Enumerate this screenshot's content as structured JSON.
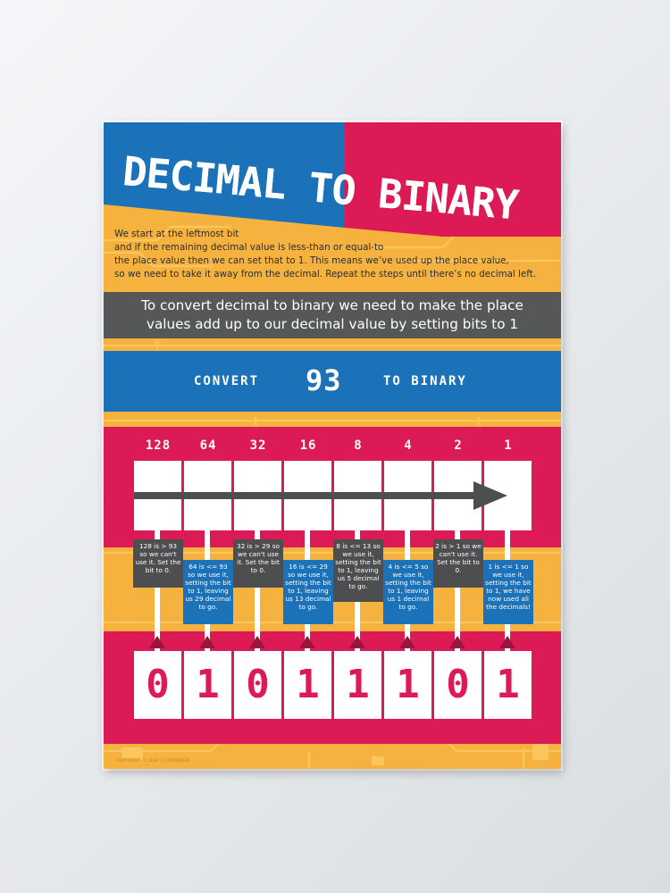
{
  "title": "DECIMAL TO BINARY",
  "intro_lines": [
    "We start at the leftmost bit",
    "and if the remaining decimal value is less-than or equal-to",
    "the place value then we can set that to 1. This means we’ve used up the place value,",
    "so we need to take it away from the decimal. Repeat the steps until there’s no decimal left."
  ],
  "summary_lines": [
    "To convert decimal to binary we need to make the place",
    "values add up to our decimal value by setting bits to 1"
  ],
  "convert": {
    "prefix": "CONVERT",
    "number": "93",
    "suffix": "TO BINARY"
  },
  "place_values": [
    "128",
    "64",
    "32",
    "16",
    "8",
    "4",
    "2",
    "1"
  ],
  "bits": [
    "0",
    "1",
    "0",
    "1",
    "1",
    "1",
    "0",
    "1"
  ],
  "notes": [
    {
      "text": "128 is > 93 so we can't use it. Set the bit to 0.",
      "style": "grey"
    },
    {
      "text": "64 is <= 93 so we use it, setting the bit to 1, leaving us 29 decimal to go.",
      "style": "blue"
    },
    {
      "text": "32 is > 29 so we can't use it. Set the bit to 0.",
      "style": "grey"
    },
    {
      "text": "16 is <= 29 so we use it, setting the bit to 1, leaving us 13 decimal to go.",
      "style": "blue"
    },
    {
      "text": "8 is <= 13 so we use it, setting the bit to 1, leaving us 5 decimal to go.",
      "style": "grey"
    },
    {
      "text": "4 is <= 5 so we use it, setting the bit to 1, leaving us 1 decimal to go.",
      "style": "blue"
    },
    {
      "text": "2 is > 1 so we can't use it. Set the bit to 0.",
      "style": "grey"
    },
    {
      "text": "1 is <= 1 so we use it, setting the bit to 1, we have now used all the decimals!",
      "style": "blue"
    }
  ],
  "footer": "COPYRIGHT © 2020 | CODEWHIZZ",
  "colors": {
    "background": "#f6b23e",
    "red": "#dc1a55",
    "blue": "#1c72b9",
    "grey": "#555759"
  }
}
